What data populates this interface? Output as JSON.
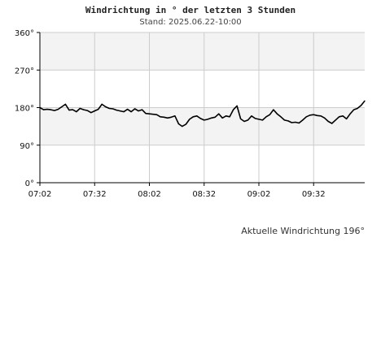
{
  "title": "Windrichtung in ° der letzten 3 Stunden",
  "subtitle": "Stand: 2025.06.22-10:00",
  "footer": "Aktuelle Windrichtung 196°",
  "colors": {
    "band": "#f3f3f3",
    "grid": "#cccccc",
    "line": "#000000"
  },
  "chart_data": {
    "type": "line",
    "title": "Windrichtung in ° der letzten 3 Stunden",
    "subtitle": "Stand: 2025.06.22-10:00",
    "xlabel": "",
    "ylabel": "",
    "grid": true,
    "legend": "none",
    "ylim": [
      0,
      360
    ],
    "yticks": [
      {
        "value": 0,
        "label": "0°"
      },
      {
        "value": 90,
        "label": "90°"
      },
      {
        "value": 180,
        "label": "180°"
      },
      {
        "value": 270,
        "label": "270°"
      },
      {
        "value": 360,
        "label": "360°"
      }
    ],
    "shaded_bands": [
      [
        90,
        180
      ],
      [
        270,
        360
      ]
    ],
    "xlim": [
      "07:02",
      "10:00"
    ],
    "xticks": [
      "07:02",
      "07:32",
      "08:02",
      "08:32",
      "09:02",
      "09:32"
    ],
    "series": [
      {
        "x": [
          "07:02",
          "07:04",
          "07:06",
          "07:08",
          "07:10",
          "07:12",
          "07:14",
          "07:16",
          "07:18",
          "07:20",
          "07:22",
          "07:24",
          "07:26",
          "07:28",
          "07:30",
          "07:32",
          "07:34",
          "07:36",
          "07:38",
          "07:40",
          "07:42",
          "07:44",
          "07:46",
          "07:48",
          "07:50",
          "07:52",
          "07:54",
          "07:56",
          "07:58",
          "08:00",
          "08:02",
          "08:04",
          "08:06",
          "08:08",
          "08:10",
          "08:12",
          "08:14",
          "08:16",
          "08:18",
          "08:20",
          "08:22",
          "08:24",
          "08:26",
          "08:28",
          "08:30",
          "08:32",
          "08:34",
          "08:36",
          "08:38",
          "08:40",
          "08:42",
          "08:44",
          "08:46",
          "08:48",
          "08:50",
          "08:52",
          "08:54",
          "08:56",
          "08:58",
          "09:00",
          "09:02",
          "09:04",
          "09:06",
          "09:08",
          "09:10",
          "09:12",
          "09:14",
          "09:16",
          "09:18",
          "09:20",
          "09:22",
          "09:24",
          "09:26",
          "09:28",
          "09:30",
          "09:32",
          "09:34",
          "09:36",
          "09:38",
          "09:40",
          "09:42",
          "09:44",
          "09:46",
          "09:48",
          "09:50",
          "09:52",
          "09:54",
          "09:56",
          "09:58",
          "10:00"
        ],
        "values": [
          180,
          175,
          176,
          175,
          173,
          176,
          182,
          188,
          174,
          175,
          170,
          178,
          175,
          173,
          168,
          172,
          176,
          188,
          182,
          178,
          177,
          174,
          172,
          170,
          176,
          170,
          177,
          172,
          175,
          166,
          165,
          164,
          163,
          158,
          157,
          155,
          157,
          160,
          141,
          135,
          140,
          152,
          158,
          160,
          154,
          150,
          152,
          155,
          157,
          165,
          155,
          160,
          158,
          175,
          184,
          153,
          147,
          150,
          160,
          154,
          152,
          150,
          158,
          163,
          175,
          165,
          158,
          150,
          148,
          144,
          145,
          143,
          150,
          158,
          162,
          163,
          161,
          160,
          155,
          147,
          142,
          150,
          158,
          160,
          153,
          165,
          175,
          178,
          185,
          196
        ]
      }
    ]
  }
}
